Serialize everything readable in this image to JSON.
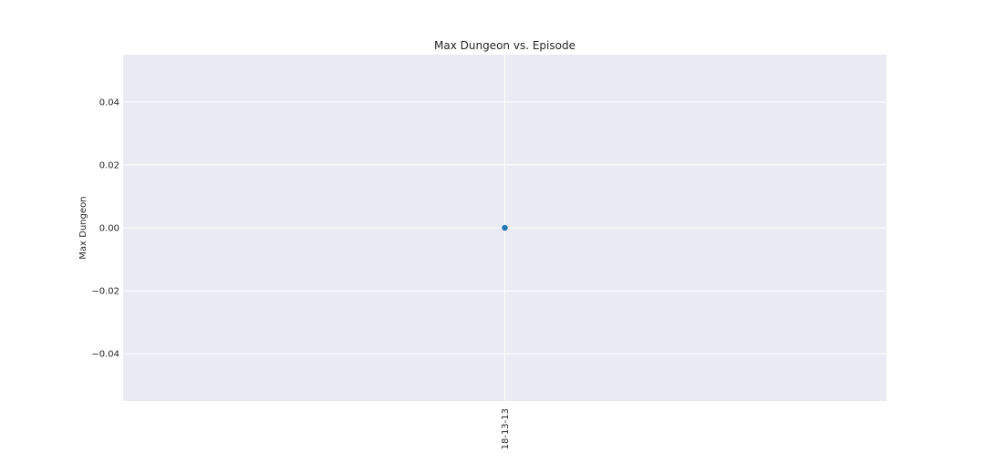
{
  "chart_data": {
    "type": "scatter",
    "title": "Max Dungeon vs. Episode",
    "xlabel": "",
    "ylabel": "Max Dungeon",
    "categories": [
      "18-13-13"
    ],
    "series": [
      {
        "values": [
          0
        ],
        "color": "#1f77b4"
      }
    ],
    "ylim": [
      -0.055,
      0.055
    ],
    "yticks": [
      0.04,
      0.02,
      0.0,
      -0.02,
      -0.04
    ],
    "ytick_labels": [
      "0.04",
      "0.02",
      "0.00",
      "−0.02",
      "−0.04"
    ],
    "grid": true,
    "legend": "none",
    "background_color": "#eaeaf2",
    "grid_color": "#ffffff"
  }
}
